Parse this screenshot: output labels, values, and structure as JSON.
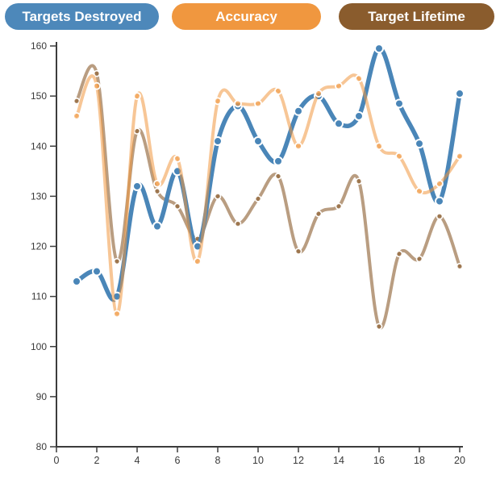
{
  "legend": {
    "buttons": [
      {
        "label": "Targets Destroyed",
        "color": "#4d88ba"
      },
      {
        "label": "Accuracy",
        "color": "#f0973f"
      },
      {
        "label": "Target Lifetime",
        "color": "#8a5c2d"
      }
    ]
  },
  "chart_data": {
    "type": "line",
    "title": "",
    "xlabel": "",
    "ylabel": "",
    "x": [
      1,
      2,
      3,
      4,
      5,
      6,
      7,
      8,
      9,
      10,
      11,
      12,
      13,
      14,
      15,
      16,
      17,
      18,
      19,
      20
    ],
    "series": [
      {
        "name": "Targets Destroyed",
        "color": "#4a86b8",
        "opacity": 1,
        "line_width": 5.5,
        "marker_radius": 5,
        "marker_ring": 2,
        "values": [
          113,
          115,
          110,
          132,
          124,
          135,
          120,
          141,
          148,
          141,
          137,
          147,
          150,
          144.5,
          146,
          159.5,
          148.5,
          140.5,
          129,
          150.5
        ]
      },
      {
        "name": "Accuracy",
        "color": "#f0973f",
        "opacity": 0.55,
        "line_width": 4,
        "marker_radius": 4,
        "marker_ring": 1.8,
        "values": [
          146,
          152,
          106.5,
          150,
          132.5,
          137.5,
          117,
          149,
          148.5,
          148.5,
          151,
          140,
          150.5,
          152,
          153.5,
          140,
          138,
          131,
          132.5,
          138
        ]
      },
      {
        "name": "Target Lifetime",
        "color": "#8a5c2d",
        "opacity": 0.6,
        "line_width": 4,
        "marker_radius": 3.5,
        "marker_ring": 1.6,
        "values": [
          149,
          154.5,
          117,
          143,
          131,
          128,
          121.5,
          130,
          124.5,
          129.5,
          134,
          119,
          126.5,
          128,
          133,
          104,
          118.5,
          117.5,
          126,
          116
        ]
      }
    ],
    "draw_order": [
      "Target Lifetime",
      "Targets Destroyed",
      "Accuracy"
    ],
    "xlim": [
      0,
      20
    ],
    "ylim": [
      80,
      160
    ],
    "x_ticks": [
      0,
      2,
      4,
      6,
      8,
      10,
      12,
      14,
      16,
      18,
      20
    ],
    "y_ticks": [
      80,
      90,
      100,
      110,
      120,
      130,
      140,
      150,
      160
    ],
    "grid": false,
    "legend_position": "top",
    "axis_color": "#3c3c3c",
    "tick_label_color": "#3a3a3a"
  }
}
